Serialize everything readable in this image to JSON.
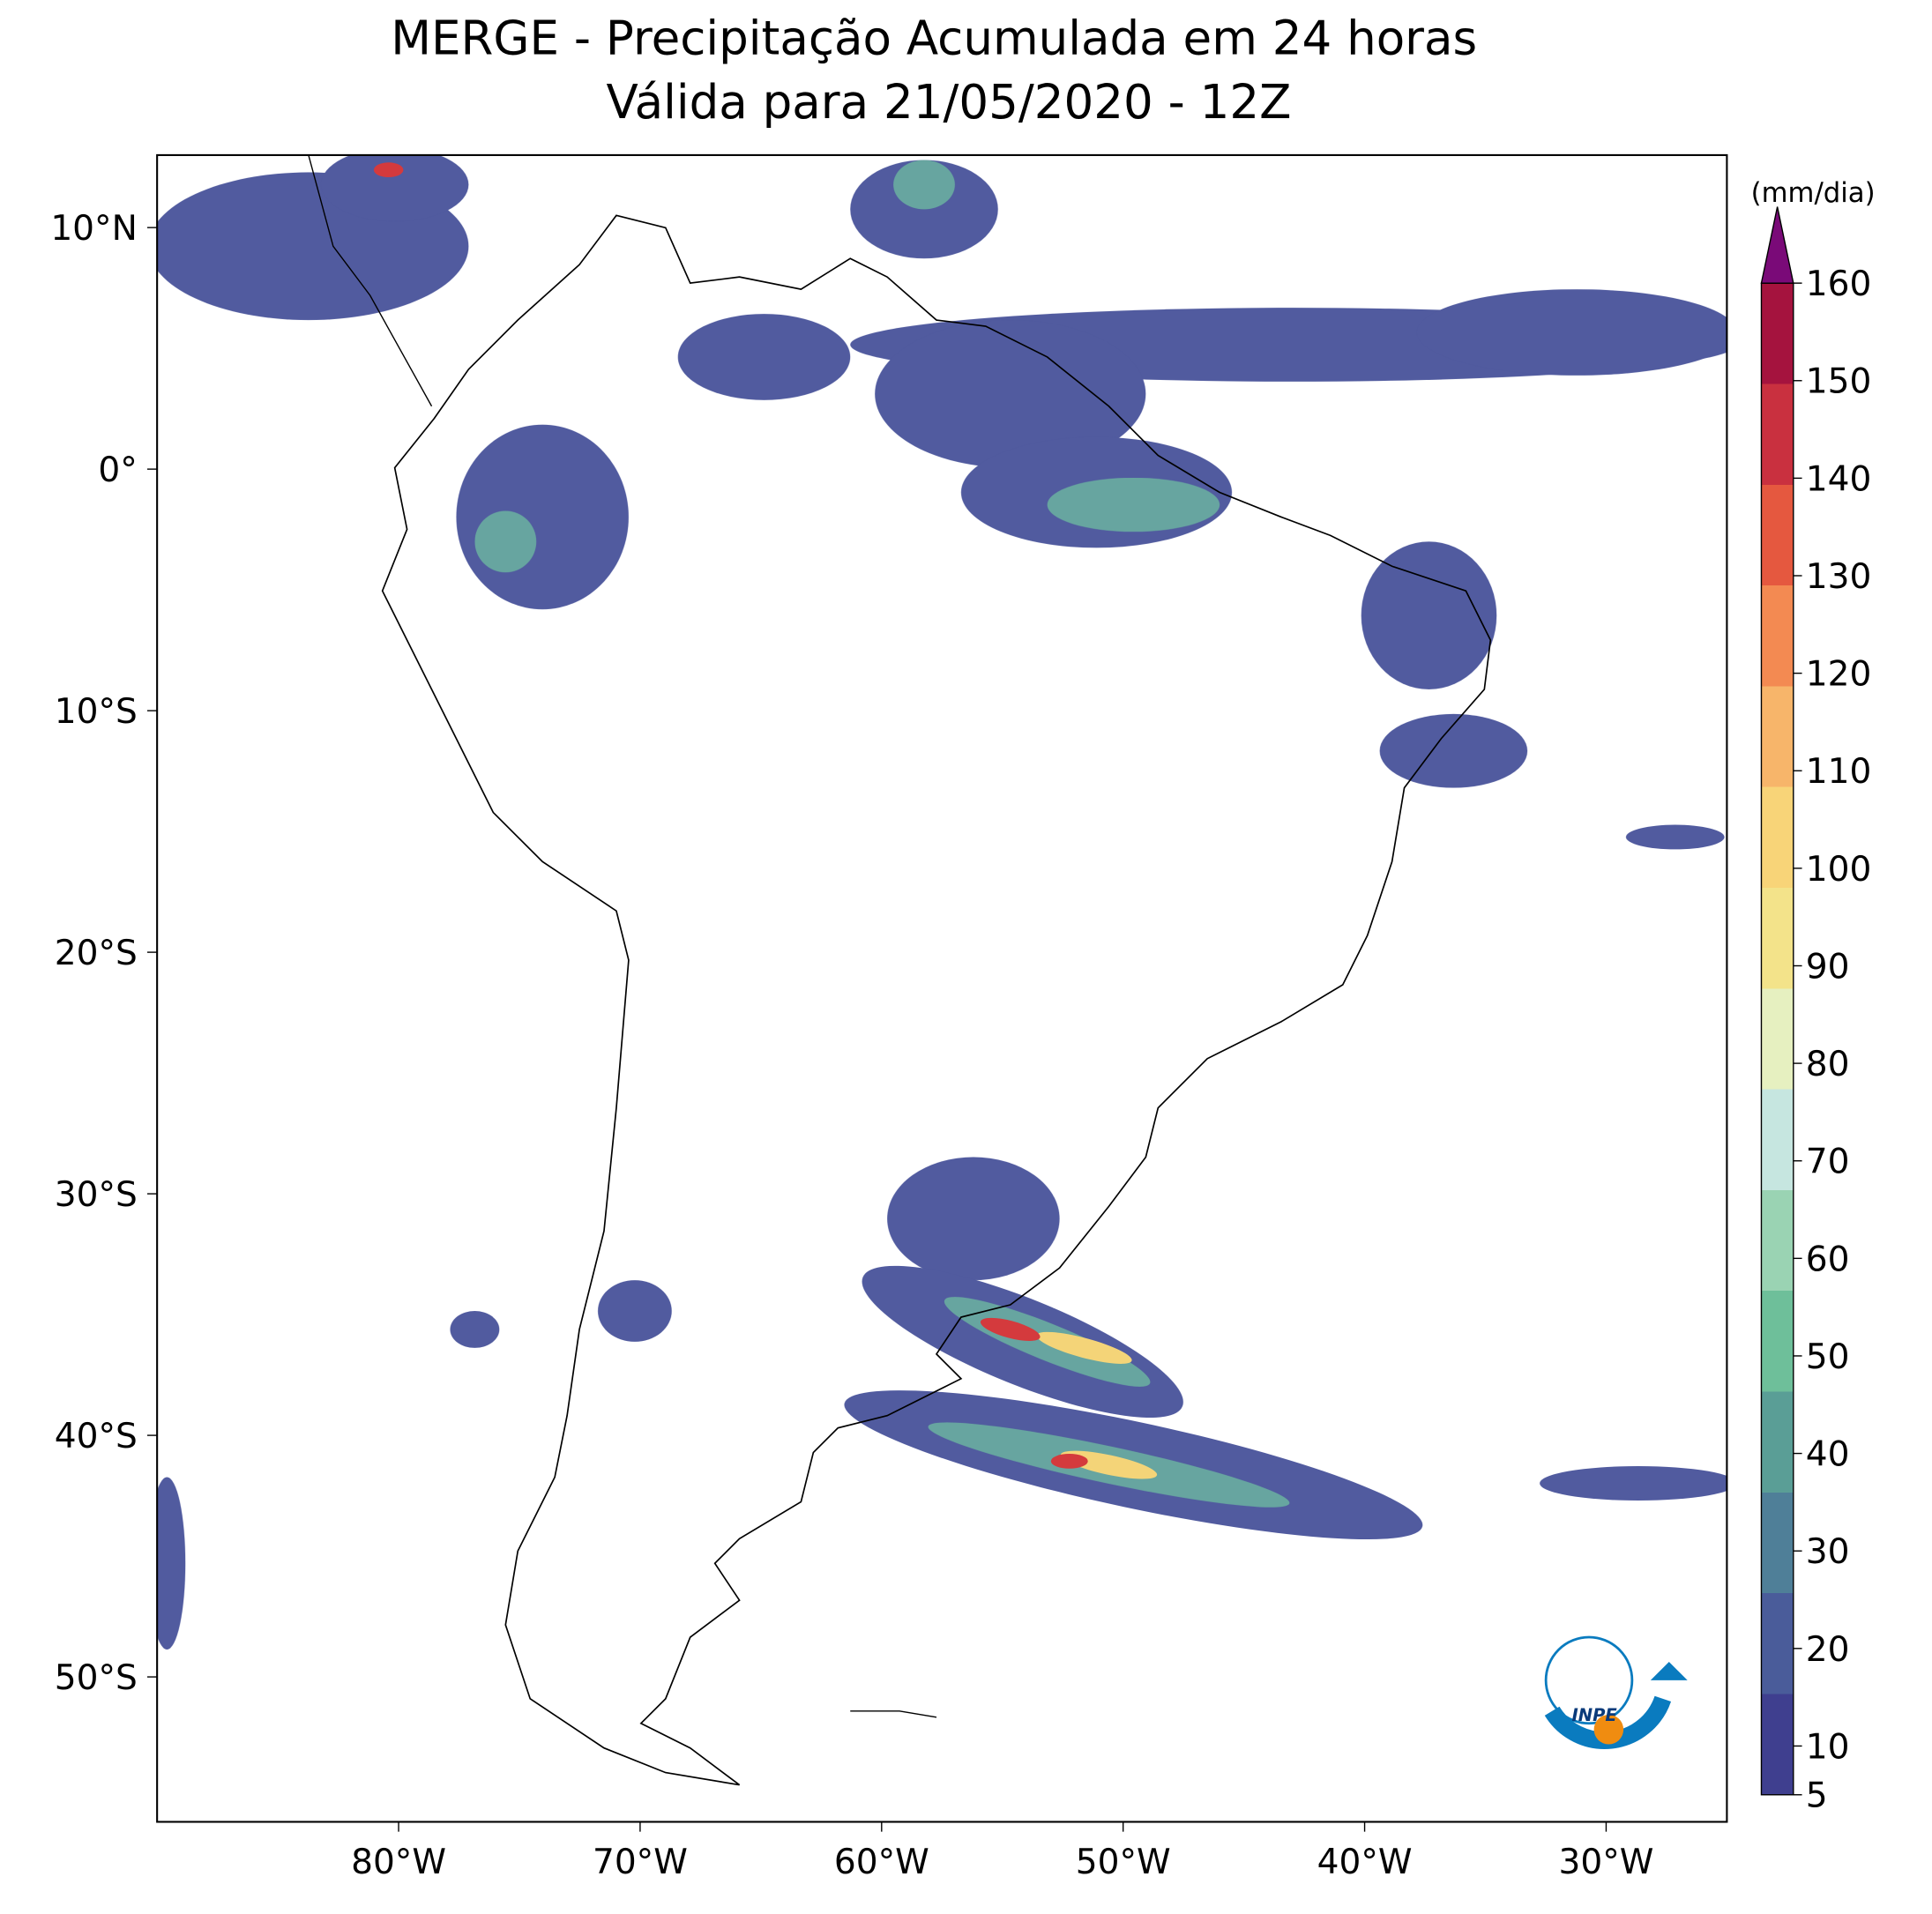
{
  "chart_data": {
    "type": "map",
    "title": "MERGE - Precipitação Acumulada em 24 horas",
    "subtitle": "Válida para 21/05/2020 - 12Z",
    "xlim": [
      -90,
      -25
    ],
    "ylim": [
      -56,
      13
    ],
    "xticks": [
      {
        "value": -80,
        "label": "80°W"
      },
      {
        "value": -70,
        "label": "70°W"
      },
      {
        "value": -60,
        "label": "60°W"
      },
      {
        "value": -50,
        "label": "50°W"
      },
      {
        "value": -40,
        "label": "40°W"
      },
      {
        "value": -30,
        "label": "30°W"
      }
    ],
    "yticks": [
      {
        "value": 10,
        "label": "10°N"
      },
      {
        "value": 0,
        "label": "0°"
      },
      {
        "value": -10,
        "label": "10°S"
      },
      {
        "value": -20,
        "label": "20°S"
      },
      {
        "value": -30,
        "label": "30°S"
      },
      {
        "value": -40,
        "label": "40°S"
      },
      {
        "value": -50,
        "label": "50°S"
      }
    ],
    "colorbar": {
      "label": "(mm/dia)",
      "lim": [
        5,
        160
      ],
      "ticks": [
        5,
        10,
        20,
        30,
        40,
        50,
        60,
        70,
        80,
        90,
        100,
        110,
        120,
        130,
        140,
        150,
        160
      ],
      "colors": [
        "#3f3f8f",
        "#4a5c9a",
        "#4f7f98",
        "#5a9e96",
        "#6ebf9a",
        "#9ad3b3",
        "#c6e6e0",
        "#e6f0c0",
        "#f3e38a",
        "#f8d478",
        "#f7b56a",
        "#f38a52",
        "#e5583f",
        "#c9303f",
        "#a5133e"
      ],
      "extend_color": "#7a0a78"
    },
    "logo": "INPE"
  }
}
